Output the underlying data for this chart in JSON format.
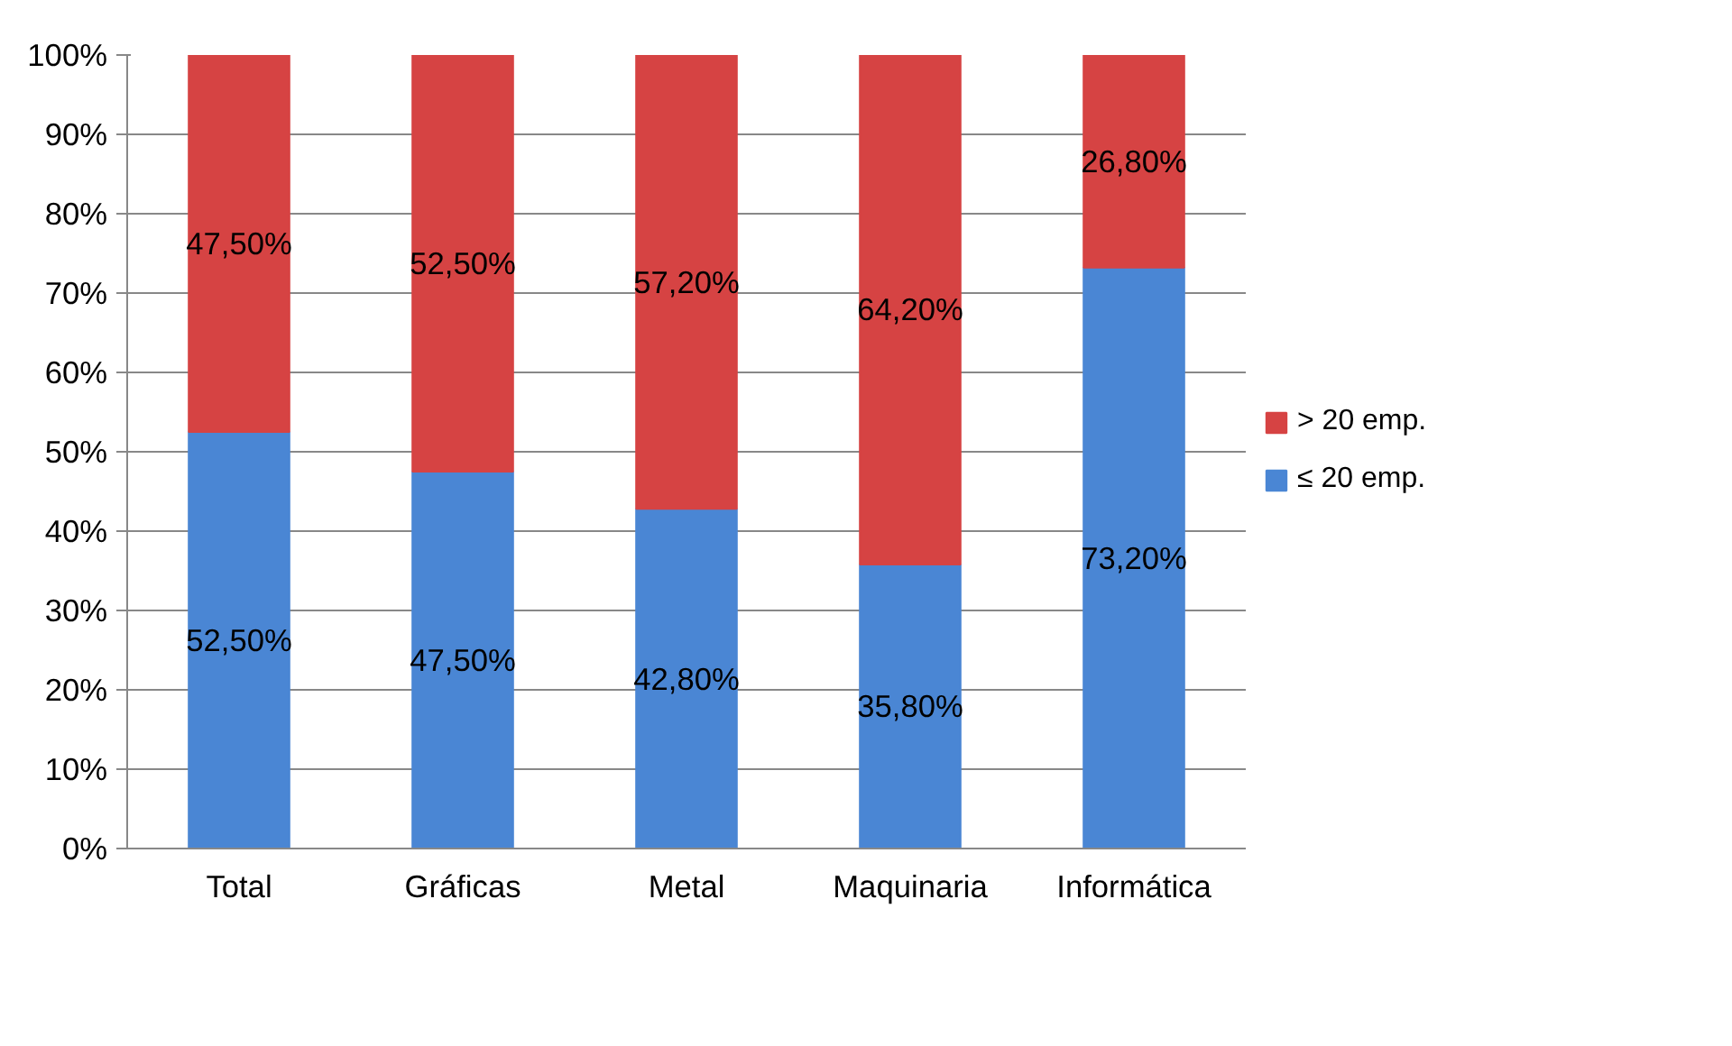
{
  "chart_data": {
    "type": "bar",
    "stacked": true,
    "categories": [
      "Total",
      "Gráficas",
      "Metal",
      "Maquinaria",
      "Informática"
    ],
    "ylim": [
      0,
      100
    ],
    "yticks": [
      {
        "value": 0,
        "label": "0%"
      },
      {
        "value": 10,
        "label": "10%"
      },
      {
        "value": 20,
        "label": "20%"
      },
      {
        "value": 30,
        "label": "30%"
      },
      {
        "value": 40,
        "label": "40%"
      },
      {
        "value": 50,
        "label": "50%"
      },
      {
        "value": 60,
        "label": "60%"
      },
      {
        "value": 70,
        "label": "70%"
      },
      {
        "value": 80,
        "label": "80%"
      },
      {
        "value": 90,
        "label": "90%"
      },
      {
        "value": 100,
        "label": "100%"
      }
    ],
    "grid": "y",
    "legend": "right",
    "series": [
      {
        "name": "≤ 20 emp.",
        "color": "#4a86d4",
        "values": [
          52.5,
          47.5,
          42.8,
          35.8,
          73.2
        ],
        "value_labels": [
          "52,50%",
          "47,50%",
          "42,80%",
          "35,80%",
          "73,20%"
        ]
      },
      {
        "name": "> 20 emp.",
        "color": "#d64343",
        "values": [
          47.5,
          52.5,
          57.2,
          64.2,
          26.8
        ],
        "value_labels": [
          "47,50%",
          "52,50%",
          "57,20%",
          "64,20%",
          "26,80%"
        ]
      }
    ]
  }
}
